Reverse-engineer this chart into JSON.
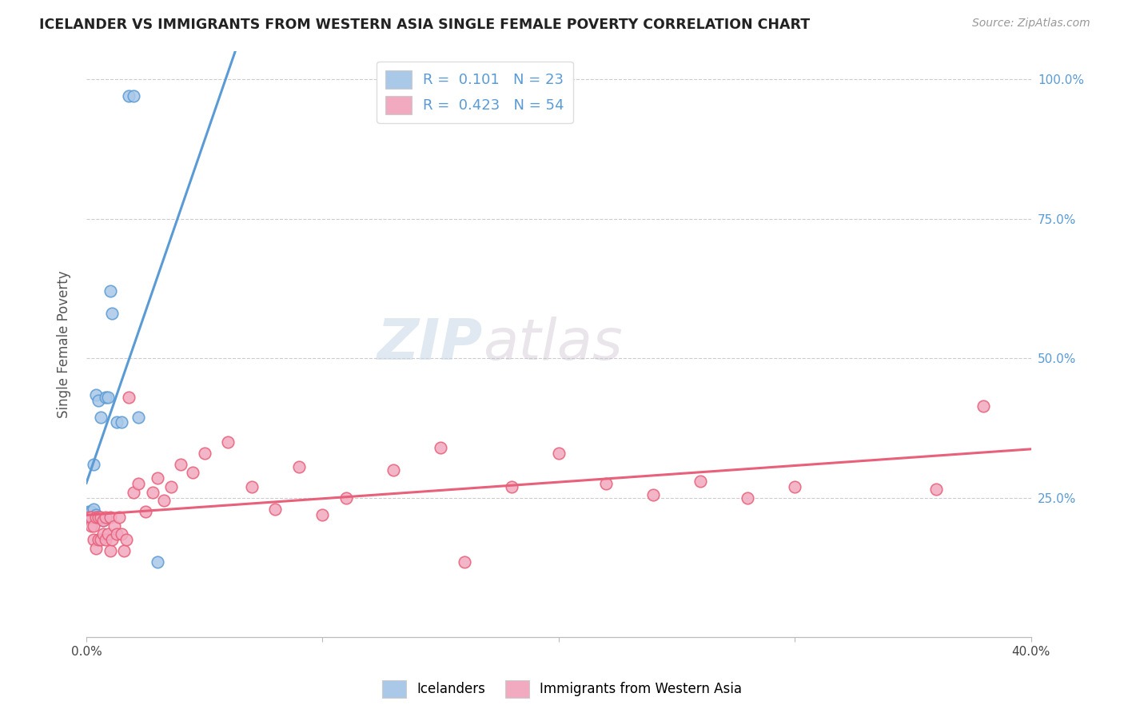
{
  "title": "ICELANDER VS IMMIGRANTS FROM WESTERN ASIA SINGLE FEMALE POVERTY CORRELATION CHART",
  "source": "Source: ZipAtlas.com",
  "ylabel": "Single Female Poverty",
  "color_blue": "#aac8e8",
  "color_pink": "#f2aac0",
  "color_blue_line": "#5b9bd5",
  "color_pink_line": "#e8607a",
  "color_blue_dash": "#aabccc",
  "xlim": [
    0.0,
    0.4
  ],
  "ylim": [
    0.0,
    1.05
  ],
  "icelander_x": [
    0.001,
    0.001,
    0.002,
    0.002,
    0.003,
    0.003,
    0.003,
    0.004,
    0.004,
    0.005,
    0.005,
    0.006,
    0.007,
    0.008,
    0.009,
    0.01,
    0.011,
    0.013,
    0.015,
    0.018,
    0.02,
    0.022,
    0.03
  ],
  "icelander_y": [
    0.215,
    0.225,
    0.215,
    0.225,
    0.215,
    0.23,
    0.31,
    0.22,
    0.435,
    0.215,
    0.425,
    0.395,
    0.21,
    0.43,
    0.43,
    0.62,
    0.58,
    0.385,
    0.385,
    0.97,
    0.97,
    0.395,
    0.135
  ],
  "immigrant_x": [
    0.001,
    0.002,
    0.002,
    0.003,
    0.003,
    0.004,
    0.004,
    0.005,
    0.005,
    0.006,
    0.006,
    0.007,
    0.007,
    0.008,
    0.008,
    0.009,
    0.01,
    0.01,
    0.011,
    0.012,
    0.013,
    0.014,
    0.015,
    0.016,
    0.017,
    0.018,
    0.02,
    0.022,
    0.025,
    0.028,
    0.03,
    0.033,
    0.036,
    0.04,
    0.045,
    0.05,
    0.06,
    0.07,
    0.08,
    0.09,
    0.1,
    0.11,
    0.13,
    0.15,
    0.16,
    0.18,
    0.2,
    0.22,
    0.24,
    0.26,
    0.28,
    0.3,
    0.36,
    0.38
  ],
  "immigrant_y": [
    0.215,
    0.2,
    0.215,
    0.175,
    0.2,
    0.16,
    0.215,
    0.175,
    0.215,
    0.175,
    0.215,
    0.185,
    0.21,
    0.175,
    0.215,
    0.185,
    0.155,
    0.215,
    0.175,
    0.2,
    0.185,
    0.215,
    0.185,
    0.155,
    0.175,
    0.43,
    0.26,
    0.275,
    0.225,
    0.26,
    0.285,
    0.245,
    0.27,
    0.31,
    0.295,
    0.33,
    0.35,
    0.27,
    0.23,
    0.305,
    0.22,
    0.25,
    0.3,
    0.34,
    0.135,
    0.27,
    0.33,
    0.275,
    0.255,
    0.28,
    0.25,
    0.27,
    0.265,
    0.415
  ]
}
